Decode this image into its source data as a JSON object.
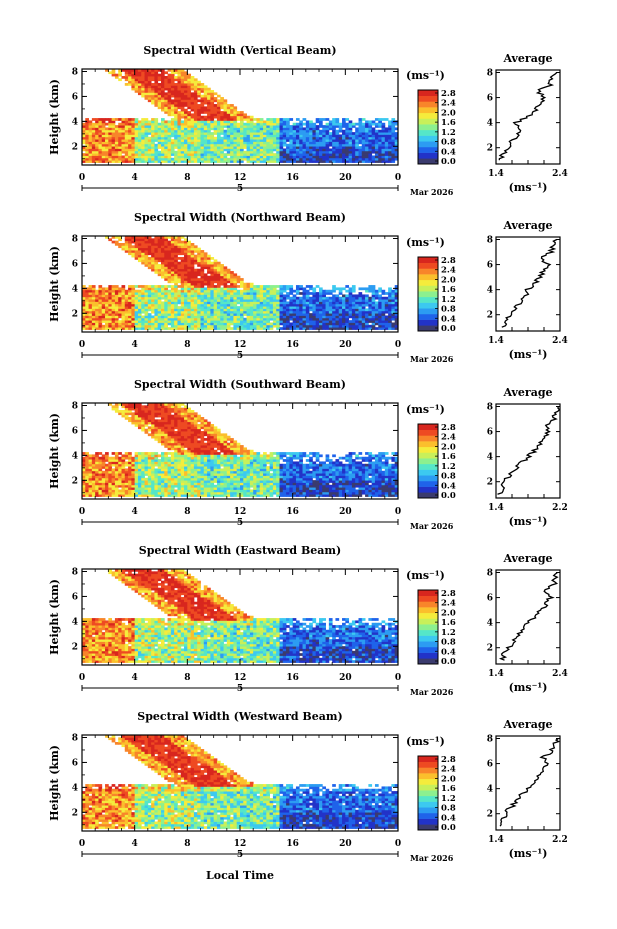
{
  "chart_data": {
    "type": "heatmap",
    "xlabel": "Local Time",
    "date_label": "Mar 2026",
    "day_label": "5",
    "x_ticks": [
      "0",
      "4",
      "8",
      "12",
      "16",
      "20",
      "0"
    ],
    "y_ticks": [
      "2",
      "4",
      "6",
      "8"
    ],
    "ylabel": "Height (km)",
    "xlim": [
      0,
      24
    ],
    "ylim": [
      0.5,
      8.2
    ],
    "colorbar": {
      "unit": "(ms⁻¹)",
      "range": [
        0,
        2.8
      ],
      "ticks": [
        "2.8",
        "2.4",
        "2.0",
        "1.6",
        "1.2",
        "0.8",
        "0.4",
        "0.0"
      ],
      "colors": [
        "#3b3b6e",
        "#2233c8",
        "#1f63ea",
        "#2c9cf2",
        "#3cc9f0",
        "#55e6c8",
        "#8cf08f",
        "#c8f05a",
        "#f5ec3c",
        "#fbbf2c",
        "#f8852a",
        "#ee4a22",
        "#d8261e"
      ]
    },
    "average_title": "Average",
    "average_unit": "(ms⁻¹)",
    "average_y_ticks": [
      "2",
      "4",
      "6",
      "8"
    ],
    "panels": [
      {
        "title": "Spectral Width (Vertical Beam)",
        "avg_xlim_labels": [
          "1.4",
          "2.4"
        ],
        "avg_xlim": [
          1.4,
          2.4
        ],
        "avg_profile": {
          "height": [
            1.0,
            1.5,
            2.0,
            2.5,
            3.0,
            3.5,
            4.0,
            4.5,
            5.0,
            5.5,
            6.0,
            6.5,
            7.0,
            7.5,
            8.0
          ],
          "width": [
            1.48,
            1.5,
            1.6,
            1.65,
            1.75,
            1.8,
            1.72,
            1.9,
            2.02,
            2.08,
            2.15,
            2.05,
            2.25,
            2.28,
            2.35
          ]
        }
      },
      {
        "title": "Spectral Width (Northward Beam)",
        "avg_xlim_labels": [
          "1.4",
          "2.4"
        ],
        "avg_xlim": [
          1.4,
          2.4
        ],
        "avg_profile": {
          "height": [
            1.0,
            1.5,
            2.0,
            2.5,
            3.0,
            3.5,
            4.0,
            4.5,
            5.0,
            5.5,
            6.0,
            6.5,
            7.0,
            7.5,
            8.0
          ],
          "width": [
            1.5,
            1.55,
            1.6,
            1.7,
            1.78,
            1.85,
            1.9,
            2.0,
            2.1,
            2.15,
            2.2,
            2.12,
            2.25,
            2.3,
            2.35
          ]
        }
      },
      {
        "title": "Spectral Width (Southward Beam)",
        "avg_xlim_labels": [
          "1.4",
          "2.2"
        ],
        "avg_xlim": [
          1.4,
          2.2
        ],
        "avg_profile": {
          "height": [
            1.0,
            1.5,
            2.0,
            2.5,
            3.0,
            3.5,
            4.0,
            4.5,
            5.0,
            5.5,
            6.0,
            6.5,
            7.0,
            7.5,
            8.0
          ],
          "width": [
            1.45,
            1.47,
            1.5,
            1.58,
            1.65,
            1.72,
            1.8,
            1.88,
            1.95,
            2.0,
            2.05,
            2.02,
            2.12,
            2.15,
            2.18
          ]
        }
      },
      {
        "title": "Spectral Width (Eastward Beam)",
        "avg_xlim_labels": [
          "1.4",
          "2.4"
        ],
        "avg_xlim": [
          1.4,
          2.4
        ],
        "avg_profile": {
          "height": [
            1.0,
            1.5,
            2.0,
            2.5,
            3.0,
            3.5,
            4.0,
            4.5,
            5.0,
            5.5,
            6.0,
            6.5,
            7.0,
            7.5,
            8.0
          ],
          "width": [
            1.5,
            1.52,
            1.6,
            1.68,
            1.75,
            1.82,
            1.9,
            2.0,
            2.1,
            2.18,
            2.25,
            2.15,
            2.3,
            2.32,
            2.36
          ]
        }
      },
      {
        "title": "Spectral Width (Westward Beam)",
        "avg_xlim_labels": [
          "1.4",
          "2.2"
        ],
        "avg_xlim": [
          1.4,
          2.2
        ],
        "avg_profile": {
          "height": [
            1.0,
            1.5,
            2.0,
            2.5,
            3.0,
            3.5,
            4.0,
            4.5,
            5.0,
            5.5,
            6.0,
            6.5,
            7.0,
            7.5,
            8.0
          ],
          "width": [
            1.45,
            1.48,
            1.52,
            1.58,
            1.66,
            1.72,
            1.8,
            1.86,
            1.92,
            1.98,
            2.05,
            1.98,
            2.1,
            2.13,
            2.18
          ]
        }
      }
    ]
  }
}
